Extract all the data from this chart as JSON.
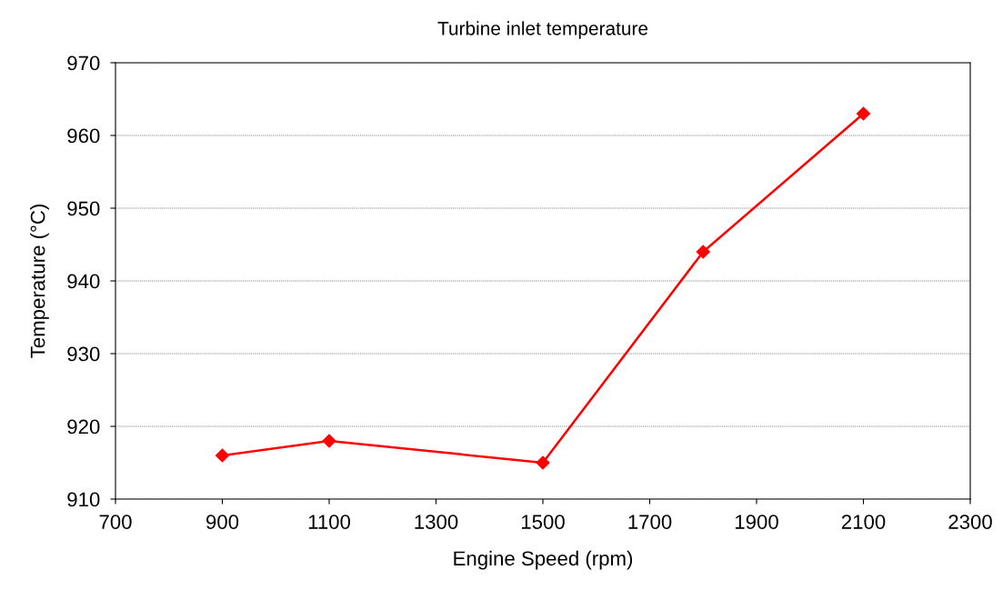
{
  "chart_data": {
    "type": "line",
    "title": "Turbine inlet temperature",
    "xlabel": "Engine Speed (rpm)",
    "ylabel": "Temperature (°C)",
    "x": [
      900,
      1100,
      1500,
      1800,
      2100
    ],
    "series": [
      {
        "color": "#ff0000",
        "values": [
          916,
          918,
          915,
          944,
          963
        ]
      }
    ],
    "xlim": [
      700,
      2300
    ],
    "xticks": [
      700,
      900,
      1100,
      1300,
      1500,
      1700,
      1900,
      2100,
      2300
    ],
    "ylim": [
      910,
      970
    ],
    "yticks": [
      910,
      920,
      930,
      940,
      950,
      960,
      970
    ],
    "grid": "y",
    "marker": "diamond",
    "line_style": "solid"
  }
}
